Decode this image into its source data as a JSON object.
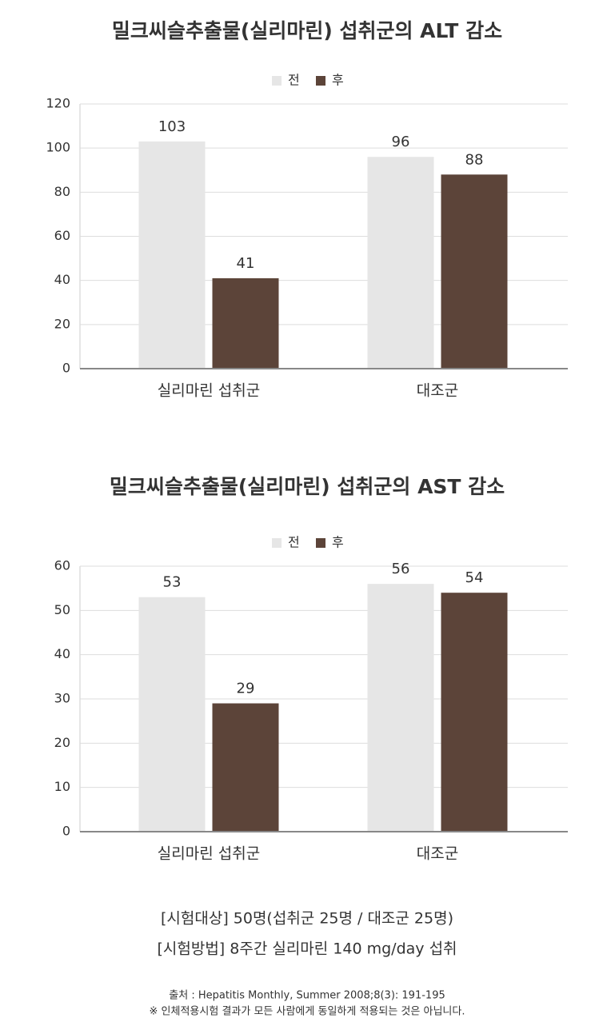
{
  "chart_data": [
    {
      "type": "bar",
      "title": "밀크씨슬추출물(실리마린) 섭취군의 ALT 감소",
      "categories": [
        "실리마린 섭취군",
        "대조군"
      ],
      "series": [
        {
          "name": "전",
          "color": "#e6e6e6",
          "values": [
            103,
            96
          ]
        },
        {
          "name": "후",
          "color": "#5c4439",
          "values": [
            41,
            88
          ]
        }
      ],
      "ylim": [
        0,
        120
      ],
      "yticks": [
        0,
        20,
        40,
        60,
        80,
        100,
        120
      ],
      "grid": true
    },
    {
      "type": "bar",
      "title": "밀크씨슬추출물(실리마린) 섭취군의 AST 감소",
      "categories": [
        "실리마린 섭취군",
        "대조군"
      ],
      "series": [
        {
          "name": "전",
          "color": "#e6e6e6",
          "values": [
            53,
            56
          ]
        },
        {
          "name": "후",
          "color": "#5c4439",
          "values": [
            29,
            54
          ]
        }
      ],
      "ylim": [
        0,
        60
      ],
      "yticks": [
        0,
        10,
        20,
        30,
        40,
        50,
        60
      ],
      "grid": true
    }
  ],
  "notes": [
    "[시험대상] 50명(섭취군 25명 / 대조군 25명)",
    "[시험방법] 8주간 실리마린 140 mg/day 섭취"
  ],
  "source": [
    "출처 : Hepatitis Monthly, Summer 2008;8(3): 191-195",
    "※ 인체적용시험 결과가 모든 사람에게 동일하게 적용되는 것은 아닙니다."
  ]
}
